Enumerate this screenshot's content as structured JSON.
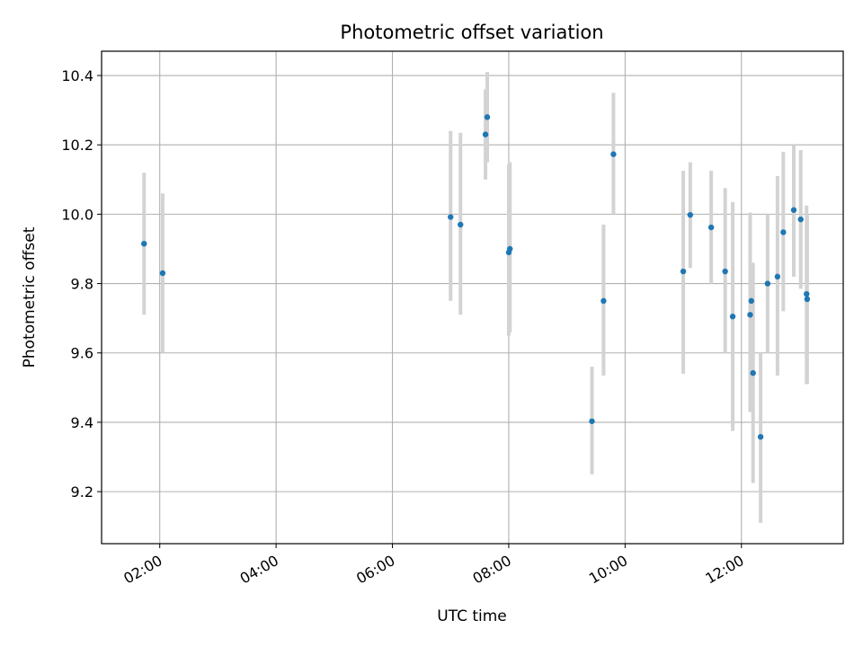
{
  "chart_data": {
    "type": "scatter",
    "title": "Photometric offset variation",
    "xlabel": "UTC time",
    "ylabel": "Photometric offset",
    "x_unit": "hours UTC",
    "xlim": [
      1.0,
      13.75
    ],
    "ylim": [
      9.05,
      10.47
    ],
    "x_ticks": [
      {
        "value": 2,
        "label": "02:00"
      },
      {
        "value": 4,
        "label": "04:00"
      },
      {
        "value": 6,
        "label": "06:00"
      },
      {
        "value": 8,
        "label": "08:00"
      },
      {
        "value": 10,
        "label": "10:00"
      },
      {
        "value": 12,
        "label": "12:00"
      }
    ],
    "y_ticks": [
      {
        "value": 9.2,
        "label": "9.2"
      },
      {
        "value": 9.4,
        "label": "9.4"
      },
      {
        "value": 9.6,
        "label": "9.6"
      },
      {
        "value": 9.8,
        "label": "9.8"
      },
      {
        "value": 10.0,
        "label": "10.0"
      },
      {
        "value": 10.2,
        "label": "10.2"
      },
      {
        "value": 10.4,
        "label": "10.4"
      }
    ],
    "grid": true,
    "x_tick_rotation": "rotated-30",
    "colors": {
      "point": "#1f77b4",
      "errorbar": "#d3d3d3",
      "grid": "#b0b0b0"
    },
    "points": [
      {
        "x": 1.73,
        "y": 9.915,
        "ylow": 9.71,
        "yhigh": 10.12
      },
      {
        "x": 2.05,
        "y": 9.83,
        "ylow": 9.6,
        "yhigh": 10.06
      },
      {
        "x": 7.0,
        "y": 9.992,
        "ylow": 9.75,
        "yhigh": 10.24
      },
      {
        "x": 7.17,
        "y": 9.97,
        "ylow": 9.71,
        "yhigh": 10.235
      },
      {
        "x": 7.6,
        "y": 10.23,
        "ylow": 10.1,
        "yhigh": 10.36
      },
      {
        "x": 7.63,
        "y": 10.28,
        "ylow": 10.15,
        "yhigh": 10.41
      },
      {
        "x": 8.0,
        "y": 9.89,
        "ylow": 9.65,
        "yhigh": 10.145
      },
      {
        "x": 8.02,
        "y": 9.9,
        "ylow": 9.66,
        "yhigh": 10.15
      },
      {
        "x": 9.43,
        "y": 9.403,
        "ylow": 9.25,
        "yhigh": 9.56
      },
      {
        "x": 9.63,
        "y": 9.75,
        "ylow": 9.535,
        "yhigh": 9.97
      },
      {
        "x": 9.8,
        "y": 10.173,
        "ylow": 10.0,
        "yhigh": 10.35
      },
      {
        "x": 11.0,
        "y": 9.835,
        "ylow": 9.54,
        "yhigh": 10.125
      },
      {
        "x": 11.12,
        "y": 9.998,
        "ylow": 9.845,
        "yhigh": 10.15
      },
      {
        "x": 11.48,
        "y": 9.962,
        "ylow": 9.8,
        "yhigh": 10.125
      },
      {
        "x": 11.72,
        "y": 9.835,
        "ylow": 9.6,
        "yhigh": 10.075
      },
      {
        "x": 11.85,
        "y": 9.705,
        "ylow": 9.375,
        "yhigh": 10.035
      },
      {
        "x": 12.15,
        "y": 9.71,
        "ylow": 9.43,
        "yhigh": 10.005
      },
      {
        "x": 12.17,
        "y": 9.75,
        "ylow": 9.55,
        "yhigh": 9.86
      },
      {
        "x": 12.2,
        "y": 9.542,
        "ylow": 9.225,
        "yhigh": 9.86
      },
      {
        "x": 12.33,
        "y": 9.358,
        "ylow": 9.11,
        "yhigh": 9.6
      },
      {
        "x": 12.45,
        "y": 9.8,
        "ylow": 9.6,
        "yhigh": 10.0
      },
      {
        "x": 12.62,
        "y": 9.82,
        "ylow": 9.535,
        "yhigh": 10.11
      },
      {
        "x": 12.72,
        "y": 9.948,
        "ylow": 9.72,
        "yhigh": 10.18
      },
      {
        "x": 12.9,
        "y": 10.012,
        "ylow": 9.82,
        "yhigh": 10.2
      },
      {
        "x": 13.02,
        "y": 9.985,
        "ylow": 9.785,
        "yhigh": 10.185
      },
      {
        "x": 13.12,
        "y": 9.77,
        "ylow": 9.51,
        "yhigh": 10.025
      },
      {
        "x": 13.13,
        "y": 9.755,
        "ylow": 9.51,
        "yhigh": 10.0
      }
    ]
  }
}
